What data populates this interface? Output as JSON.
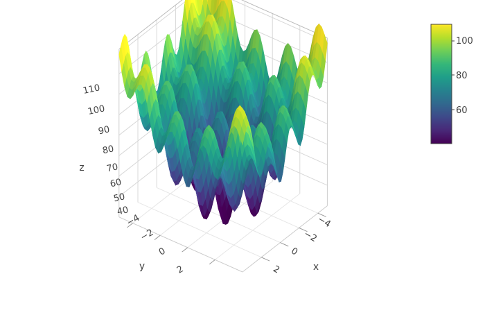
{
  "chart_data": {
    "type": "surface",
    "title": "",
    "colorscale": "viridis",
    "colors": [
      "#440154",
      "#482878",
      "#3e4989",
      "#31688e",
      "#26828e",
      "#1f9e89",
      "#35b779",
      "#6ece58",
      "#b5de2b",
      "#fde725"
    ],
    "axes": {
      "x": {
        "label": "x",
        "range": [
          -5,
          4
        ],
        "ticks": [
          "−4",
          "−2",
          "0",
          "2"
        ]
      },
      "y": {
        "label": "y",
        "range": [
          -5,
          4
        ],
        "ticks": [
          "−4",
          "−2",
          "0",
          "2"
        ]
      },
      "z": {
        "label": "z",
        "range": [
          30,
          112
        ],
        "ticks": [
          "40",
          "50",
          "60",
          "70",
          "80",
          "90",
          "100",
          "110"
        ]
      }
    },
    "colorbar": {
      "ticks": [
        "60",
        "80",
        "100"
      ],
      "range": [
        40,
        110
      ]
    },
    "surface": {
      "function": "rastrigin-like",
      "approx_z_range": [
        40,
        110
      ],
      "peaks_near_x_minus4": 110,
      "peaks_near_y_minus4": 100,
      "central_peak_z": 98
    }
  }
}
